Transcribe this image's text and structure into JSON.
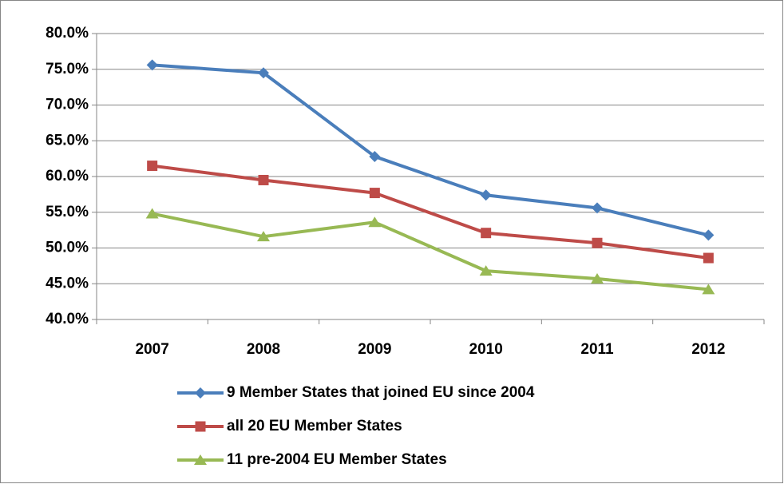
{
  "chart_data": {
    "type": "line",
    "categories": [
      "2007",
      "2008",
      "2009",
      "2010",
      "2011",
      "2012"
    ],
    "series": [
      {
        "name": "9 Member States that joined EU since 2004",
        "color": "#4a7ebb",
        "marker": "diamond",
        "values": [
          75.6,
          74.5,
          62.8,
          57.4,
          55.6,
          51.8
        ]
      },
      {
        "name": "all 20 EU Member States",
        "color": "#be4b48",
        "marker": "square",
        "values": [
          61.5,
          59.5,
          57.7,
          52.1,
          50.7,
          48.6
        ]
      },
      {
        "name": "11 pre-2004 EU Member States",
        "color": "#98b954",
        "marker": "triangle",
        "values": [
          54.8,
          51.6,
          53.6,
          46.8,
          45.7,
          44.2
        ]
      }
    ],
    "ylim": [
      40,
      80
    ],
    "yticks": [
      {
        "value": 40,
        "label": "40.0%"
      },
      {
        "value": 45,
        "label": "45.0%"
      },
      {
        "value": 50,
        "label": "50.0%"
      },
      {
        "value": 55,
        "label": "55.0%"
      },
      {
        "value": 60,
        "label": "60.0%"
      },
      {
        "value": 65,
        "label": "65.0%"
      },
      {
        "value": 70,
        "label": "70.0%"
      },
      {
        "value": 75,
        "label": "75.0%"
      },
      {
        "value": 80,
        "label": "80.0%"
      }
    ],
    "grid": true,
    "legend": "bottom"
  }
}
